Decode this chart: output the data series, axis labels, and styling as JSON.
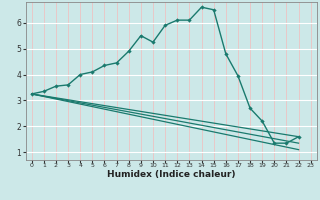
{
  "xlabel": "Humidex (Indice chaleur)",
  "ylabel": "",
  "background_color": "#cce8e8",
  "line_color": "#1a7a6e",
  "grid_color": "#ffffff",
  "red_grid_color": "#e8c8c8",
  "xmin": -0.5,
  "xmax": 23.5,
  "ymin": 0.7,
  "ymax": 6.8,
  "yticks": [
    1,
    2,
    3,
    4,
    5,
    6
  ],
  "xticks": [
    0,
    1,
    2,
    3,
    4,
    5,
    6,
    7,
    8,
    9,
    10,
    11,
    12,
    13,
    14,
    15,
    16,
    17,
    18,
    19,
    20,
    21,
    22,
    23
  ],
  "series_main": {
    "x": [
      0,
      1,
      2,
      3,
      4,
      5,
      6,
      7,
      8,
      9,
      10,
      11,
      12,
      13,
      14,
      15,
      16,
      17,
      18,
      19,
      20,
      21,
      22
    ],
    "y": [
      3.25,
      3.35,
      3.55,
      3.6,
      4.0,
      4.1,
      4.35,
      4.45,
      4.9,
      5.5,
      5.25,
      5.9,
      6.1,
      6.1,
      6.6,
      6.5,
      4.8,
      3.95,
      2.7,
      2.2,
      1.35,
      1.35,
      1.6
    ]
  },
  "series_lines": [
    {
      "x": [
        0,
        22
      ],
      "y": [
        3.25,
        1.6
      ]
    },
    {
      "x": [
        0,
        22
      ],
      "y": [
        3.25,
        1.35
      ]
    },
    {
      "x": [
        0,
        22
      ],
      "y": [
        3.25,
        1.1
      ]
    }
  ]
}
